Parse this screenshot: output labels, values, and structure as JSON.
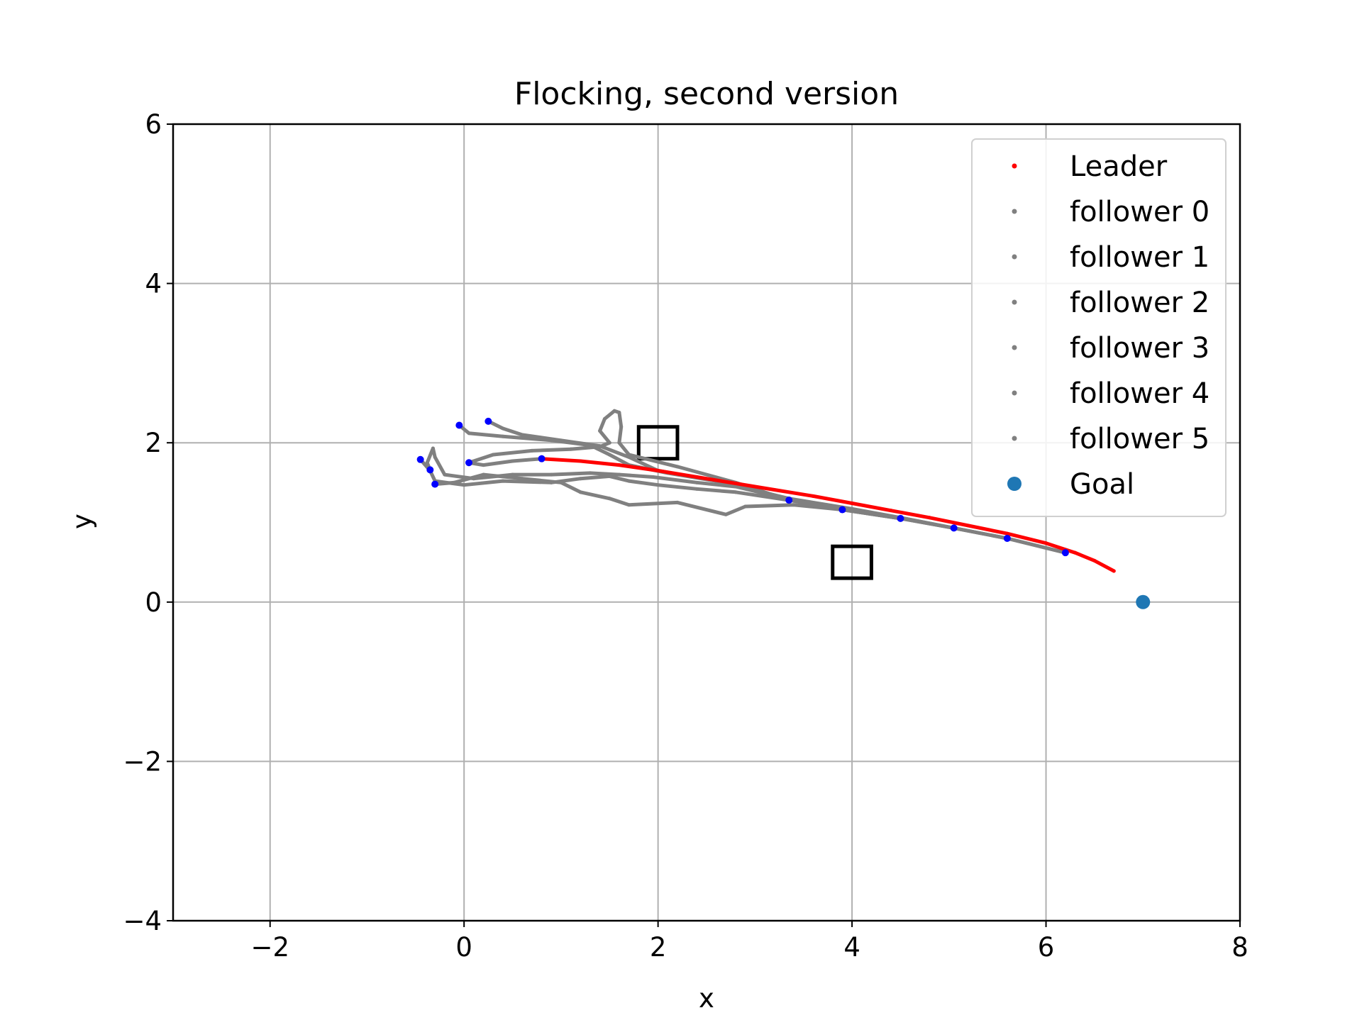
{
  "chart_data": {
    "type": "scatter",
    "title": "Flocking, second version",
    "xlabel": "x",
    "ylabel": "y",
    "xlim": [
      -3,
      8
    ],
    "ylim": [
      -4,
      6
    ],
    "xticks": [
      -2,
      0,
      2,
      4,
      6,
      8
    ],
    "yticks": [
      -4,
      -2,
      0,
      2,
      4,
      6
    ],
    "xtick_labels": [
      "−2",
      "0",
      "2",
      "4",
      "6",
      "8"
    ],
    "ytick_labels": [
      "−4",
      "−2",
      "0",
      "2",
      "4",
      "6"
    ],
    "grid": true,
    "legend_position": "top-right",
    "series": [
      {
        "name": "Leader",
        "color": "#ff0000",
        "marker": "dot",
        "points": [
          [
            0.8,
            1.8
          ],
          [
            1.2,
            1.77
          ],
          [
            1.6,
            1.72
          ],
          [
            2.0,
            1.65
          ],
          [
            2.4,
            1.57
          ],
          [
            2.8,
            1.49
          ],
          [
            3.2,
            1.41
          ],
          [
            3.6,
            1.33
          ],
          [
            4.0,
            1.24
          ],
          [
            4.4,
            1.15
          ],
          [
            4.8,
            1.06
          ],
          [
            5.2,
            0.96
          ],
          [
            5.6,
            0.86
          ],
          [
            6.0,
            0.74
          ],
          [
            6.3,
            0.62
          ],
          [
            6.5,
            0.52
          ],
          [
            6.7,
            0.39
          ]
        ]
      },
      {
        "name": "follower 0",
        "color": "#808080",
        "marker": "dot",
        "points": [
          [
            0.25,
            2.27
          ],
          [
            0.4,
            2.18
          ],
          [
            0.6,
            2.1
          ],
          [
            1.0,
            2.03
          ],
          [
            1.4,
            1.96
          ],
          [
            1.7,
            1.82
          ],
          [
            2.0,
            1.65
          ],
          [
            2.6,
            1.52
          ],
          [
            3.35,
            1.3
          ],
          [
            4.0,
            1.17
          ],
          [
            4.5,
            1.06
          ],
          [
            5.05,
            0.93
          ],
          [
            5.6,
            0.8
          ],
          [
            6.2,
            0.62
          ]
        ]
      },
      {
        "name": "follower 1",
        "color": "#808080",
        "marker": "dot",
        "points": [
          [
            -0.05,
            2.22
          ],
          [
            0.05,
            2.12
          ],
          [
            0.4,
            2.08
          ],
          [
            0.9,
            2.03
          ],
          [
            1.3,
            1.97
          ],
          [
            1.5,
            1.85
          ],
          [
            1.7,
            1.72
          ],
          [
            2.1,
            1.62
          ],
          [
            2.6,
            1.52
          ],
          [
            3.3,
            1.3
          ],
          [
            3.9,
            1.16
          ],
          [
            4.5,
            1.05
          ],
          [
            5.05,
            0.93
          ],
          [
            5.6,
            0.8
          ]
        ]
      },
      {
        "name": "follower 2",
        "color": "#808080",
        "marker": "dot",
        "points": [
          [
            -0.45,
            1.79
          ],
          [
            -0.35,
            1.65
          ],
          [
            -0.3,
            1.52
          ],
          [
            0.0,
            1.47
          ],
          [
            0.4,
            1.52
          ],
          [
            0.9,
            1.5
          ],
          [
            1.2,
            1.55
          ],
          [
            1.5,
            1.58
          ],
          [
            1.7,
            1.52
          ],
          [
            2.0,
            1.47
          ],
          [
            2.4,
            1.42
          ],
          [
            2.8,
            1.38
          ],
          [
            3.35,
            1.28
          ],
          [
            3.9,
            1.16
          ],
          [
            4.5,
            1.05
          ],
          [
            5.05,
            0.93
          ]
        ]
      },
      {
        "name": "follower 3",
        "color": "#808080",
        "marker": "dot",
        "points": [
          [
            -0.3,
            1.48
          ],
          [
            -0.1,
            1.5
          ],
          [
            0.2,
            1.6
          ],
          [
            0.6,
            1.55
          ],
          [
            1.0,
            1.5
          ],
          [
            1.2,
            1.38
          ],
          [
            1.5,
            1.3
          ],
          [
            1.7,
            1.22
          ],
          [
            2.2,
            1.25
          ],
          [
            2.7,
            1.1
          ],
          [
            2.9,
            1.2
          ],
          [
            3.4,
            1.22
          ],
          [
            3.9,
            1.16
          ],
          [
            4.5,
            1.05
          ]
        ]
      },
      {
        "name": "follower 4",
        "color": "#808080",
        "marker": "dot",
        "points": [
          [
            -0.35,
            1.66
          ],
          [
            -0.38,
            1.75
          ],
          [
            -0.32,
            1.93
          ],
          [
            -0.3,
            1.82
          ],
          [
            -0.2,
            1.6
          ],
          [
            0.1,
            1.55
          ],
          [
            0.5,
            1.6
          ],
          [
            0.9,
            1.6
          ],
          [
            1.3,
            1.62
          ],
          [
            1.6,
            1.6
          ],
          [
            1.95,
            1.57
          ],
          [
            2.4,
            1.5
          ],
          [
            2.8,
            1.45
          ],
          [
            3.35,
            1.29
          ],
          [
            3.9,
            1.16
          ]
        ]
      },
      {
        "name": "follower 5",
        "color": "#808080",
        "marker": "dot",
        "points": [
          [
            0.8,
            1.8
          ],
          [
            0.5,
            1.77
          ],
          [
            0.2,
            1.72
          ],
          [
            0.05,
            1.75
          ],
          [
            0.3,
            1.85
          ],
          [
            0.7,
            1.9
          ],
          [
            1.1,
            1.92
          ],
          [
            1.4,
            1.95
          ],
          [
            1.5,
            2.0
          ],
          [
            1.4,
            2.15
          ],
          [
            1.45,
            2.3
          ],
          [
            1.55,
            2.4
          ],
          [
            1.6,
            2.38
          ],
          [
            1.62,
            2.2
          ],
          [
            1.6,
            2.0
          ],
          [
            1.7,
            1.85
          ],
          [
            2.2,
            1.7
          ],
          [
            2.8,
            1.5
          ],
          [
            3.35,
            1.28
          ],
          [
            3.9,
            1.16
          ],
          [
            4.5,
            1.06
          ],
          [
            5.05,
            0.93
          ],
          [
            5.6,
            0.8
          ],
          [
            6.2,
            0.62
          ]
        ]
      }
    ],
    "final_positions": {
      "color": "#0000ff",
      "points": [
        [
          0.8,
          1.8
        ],
        [
          0.25,
          2.27
        ],
        [
          -0.05,
          2.22
        ],
        [
          -0.45,
          1.79
        ],
        [
          -0.3,
          1.48
        ],
        [
          0.05,
          1.75
        ],
        [
          -0.35,
          1.66
        ],
        [
          3.35,
          1.28
        ],
        [
          3.9,
          1.16
        ],
        [
          4.5,
          1.05
        ],
        [
          5.05,
          0.93
        ],
        [
          5.6,
          0.8
        ],
        [
          6.2,
          0.62
        ]
      ]
    },
    "goal": {
      "name": "Goal",
      "color": "#1f77b4",
      "point": [
        7.0,
        0.0
      ]
    },
    "obstacles": [
      {
        "center": [
          2.0,
          2.0
        ],
        "width": 0.4,
        "height": 0.4
      },
      {
        "center": [
          4.0,
          0.5
        ],
        "width": 0.4,
        "height": 0.4
      }
    ]
  }
}
